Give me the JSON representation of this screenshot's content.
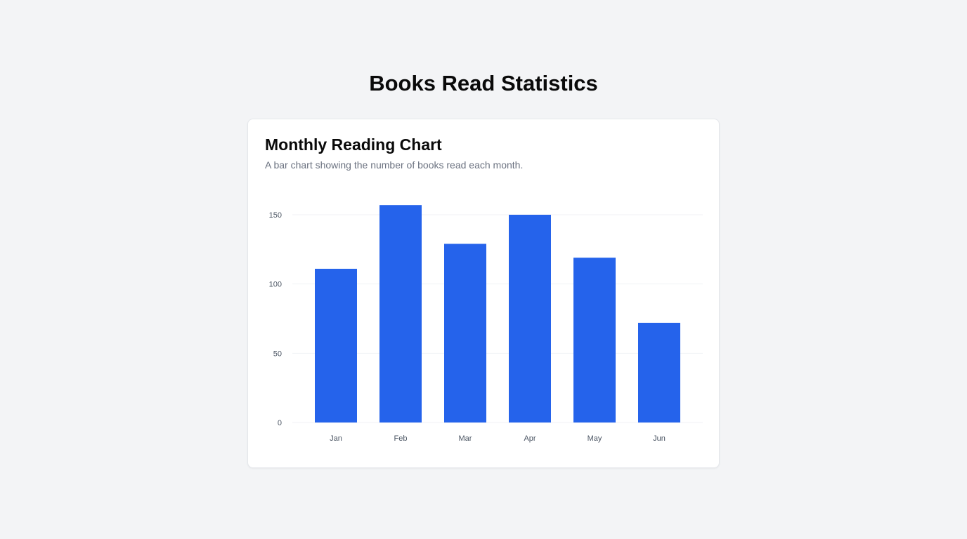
{
  "page": {
    "title": "Books Read Statistics"
  },
  "card": {
    "title": "Monthly Reading Chart",
    "subtitle": "A bar chart showing the number of books read each month."
  },
  "colors": {
    "bar": "#2563eb",
    "grid": "#f1f2f4",
    "background": "#f3f4f6",
    "card": "#ffffff"
  },
  "chart_data": {
    "type": "bar",
    "categories": [
      "Jan",
      "Feb",
      "Mar",
      "Apr",
      "May",
      "Jun"
    ],
    "values": [
      111,
      157,
      129,
      150,
      119,
      72
    ],
    "yticks": [
      "0",
      "50",
      "100",
      "150"
    ],
    "ylim": [
      0,
      150
    ],
    "grid": true,
    "legend": "none"
  }
}
